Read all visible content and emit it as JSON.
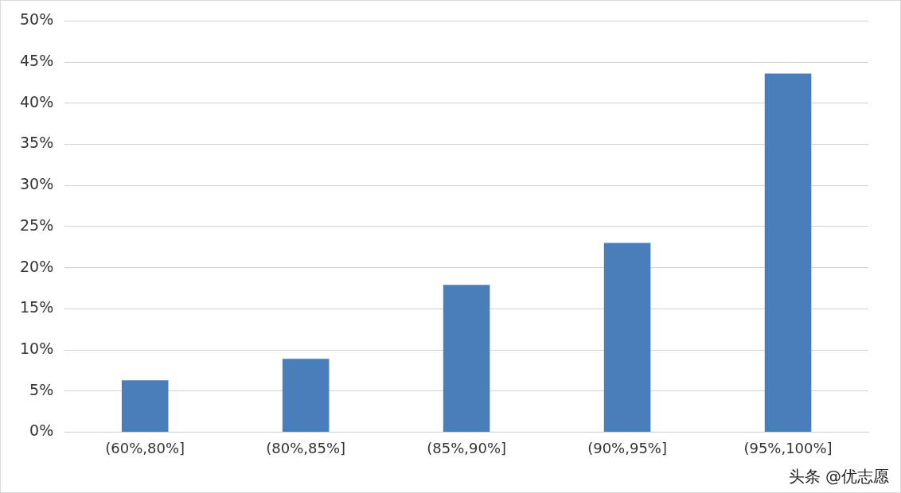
{
  "chart_data": {
    "type": "bar",
    "categories": [
      "(60%,80%]",
      "(80%,85%]",
      "(85%,90%]",
      "(90%,95%]",
      "(95%,100%]"
    ],
    "values": [
      6.3,
      8.9,
      17.9,
      23.0,
      43.6
    ],
    "color": "#4a7ebb",
    "ylim": [
      0,
      50
    ],
    "yticks": [
      {
        "value": 0,
        "label": "0%"
      },
      {
        "value": 5,
        "label": "5%"
      },
      {
        "value": 10,
        "label": "10%"
      },
      {
        "value": 15,
        "label": "15%"
      },
      {
        "value": 20,
        "label": "20%"
      },
      {
        "value": 25,
        "label": "25%"
      },
      {
        "value": 30,
        "label": "30%"
      },
      {
        "value": 35,
        "label": "35%"
      },
      {
        "value": 40,
        "label": "40%"
      },
      {
        "value": 45,
        "label": "45%"
      },
      {
        "value": 50,
        "label": "50%"
      }
    ],
    "grid": true,
    "annotations": [
      "头条 @优志愿"
    ]
  }
}
